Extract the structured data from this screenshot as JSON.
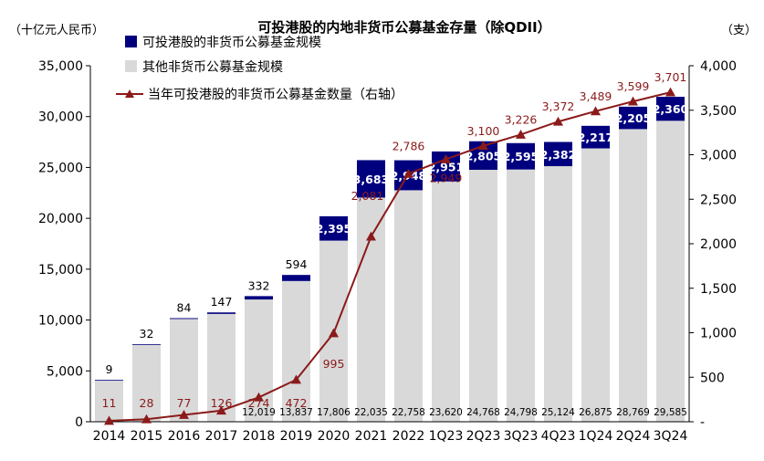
{
  "chart_data": {
    "type": "bar",
    "title": "可投港股的内地非货币公募基金存量（除QDII）",
    "left_unit": "（十亿元人民币）",
    "right_unit": "（支）",
    "categories": [
      "2014",
      "2015",
      "2016",
      "2017",
      "2018",
      "2019",
      "2020",
      "2021",
      "2022",
      "1Q23",
      "2Q23",
      "3Q23",
      "4Q23",
      "1Q24",
      "2Q24",
      "3Q24"
    ],
    "series": [
      {
        "name": "其他非货币公募基金规模",
        "kind": "bar-bottom",
        "color": "#D9D9D9",
        "values": [
          4100,
          7600,
          10100,
          10600,
          12019,
          13837,
          17806,
          22035,
          22758,
          23620,
          24768,
          24798,
          25124,
          26875,
          28769,
          29585
        ],
        "labels": [
          "",
          "",
          "",
          "",
          "12,019",
          "13,837",
          "17,806",
          "22,035",
          "22,758",
          "23,620",
          "24,768",
          "24,798",
          "25,124",
          "26,875",
          "28,769",
          "29,585"
        ]
      },
      {
        "name": "可投港股的非货币公募基金规模",
        "kind": "bar-top",
        "color": "#00007F",
        "values": [
          9,
          32,
          84,
          147,
          332,
          594,
          2395,
          3683,
          2948,
          2951,
          2805,
          2595,
          2382,
          2217,
          2205,
          2360
        ],
        "labels": [
          "9",
          "32",
          "84",
          "147",
          "332",
          "594",
          "2,395",
          "3,683",
          "2,948",
          "2,951",
          "2,805",
          "2,595",
          "2,382",
          "2,217",
          "2,205",
          "2,360"
        ]
      },
      {
        "name": "当年可投港股的非货币公募基金数量（右轴）",
        "kind": "line",
        "axis": "right",
        "color": "#8B1A1A",
        "values": [
          11,
          28,
          77,
          126,
          274,
          472,
          995,
          2081,
          2786,
          2949,
          3100,
          3226,
          3372,
          3489,
          3599,
          3701
        ],
        "labels": [
          "11",
          "28",
          "77",
          "126",
          "274",
          "472",
          "995",
          "2,081",
          "2,786",
          "2,949",
          "3,100",
          "3,226",
          "3,372",
          "3,489",
          "3,599",
          "3,701"
        ]
      }
    ],
    "left_axis": {
      "min": 0,
      "max": 35000,
      "ticks": [
        "0",
        "5,000",
        "10,000",
        "15,000",
        "20,000",
        "25,000",
        "30,000",
        "35,000"
      ]
    },
    "right_axis": {
      "min": 0,
      "max": 4000,
      "ticks": [
        "-",
        "500",
        "1,000",
        "1,500",
        "2,000",
        "2,500",
        "3,000",
        "3,500",
        "4,000"
      ]
    },
    "legend": [
      {
        "label": "可投港股的非货币公募基金规模",
        "kind": "box",
        "color": "#00007F"
      },
      {
        "label": "其他非货币公募基金规模",
        "kind": "box",
        "color": "#D9D9D9"
      },
      {
        "label": "当年可投港股的非货币公募基金数量（右轴）",
        "kind": "line",
        "color": "#8B1A1A"
      }
    ]
  }
}
